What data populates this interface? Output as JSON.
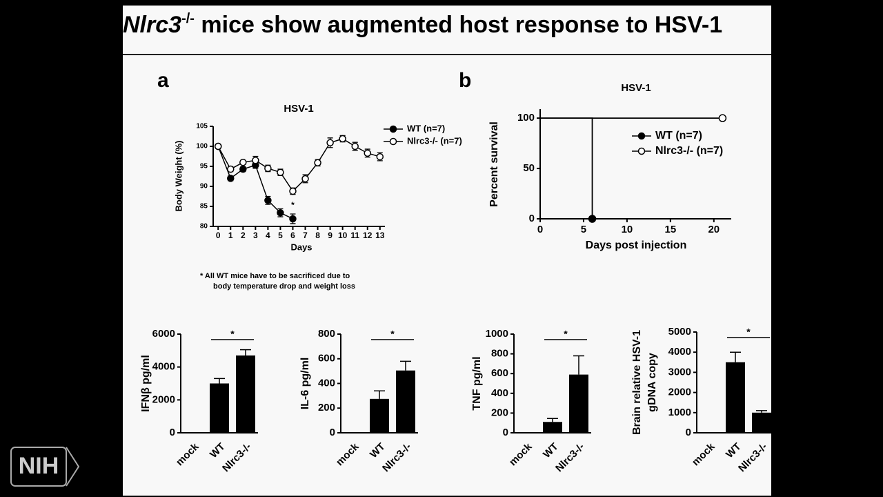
{
  "slide": {
    "title": "Nlrc3",
    "title_sup": "-/-",
    "title_rest": " mice show augmented host response to HSV-1",
    "logo": "NIH"
  },
  "chart_data": [
    {
      "type": "line",
      "panel": "a",
      "title": "HSV-1",
      "y_label": "Body Weight (%)",
      "x_label": "Days",
      "x": [
        0,
        1,
        2,
        3,
        4,
        5,
        6,
        7,
        8,
        9,
        10,
        11,
        12,
        13
      ],
      "xlim": [
        -0.4,
        13.4
      ],
      "xticks": [
        0,
        1,
        2,
        3,
        4,
        5,
        6,
        7,
        8,
        9,
        10,
        11,
        12,
        13
      ],
      "ylim": [
        80,
        105
      ],
      "yticks": [
        80,
        85,
        90,
        95,
        100,
        105
      ],
      "series": [
        {
          "name": "WT (n=7)",
          "color": "#000000",
          "marker": "filled",
          "values": [
            100,
            92,
            94.3,
            95.3,
            86.5,
            83.4,
            81.9,
            null,
            null,
            null,
            null,
            null,
            null,
            null
          ],
          "errors": [
            0.5,
            0.6,
            0.6,
            0.8,
            1,
            1,
            1.2,
            null,
            null,
            null,
            null,
            null,
            null,
            null
          ]
        },
        {
          "name": "Nlrc3-/- (n=7)",
          "color": "#000000",
          "marker": "open",
          "values": [
            100,
            94.3,
            96,
            96.5,
            94.5,
            93.5,
            88.8,
            91.9,
            95.9,
            100.9,
            101.9,
            100,
            98.3,
            97.4
          ],
          "errors": [
            0.5,
            0.6,
            0.5,
            1,
            0.8,
            0.8,
            0.8,
            1,
            0.8,
            1.2,
            0.8,
            1,
            1,
            1
          ]
        }
      ],
      "annotation": "*",
      "footnote": [
        "*   All WT mice have to be sacrificed due to",
        "body temperature drop and weight loss"
      ]
    },
    {
      "type": "step",
      "panel": "b",
      "title": "HSV-1",
      "y_label": "Percent survival",
      "x_label": "Days post injection",
      "xlim": [
        0,
        22
      ],
      "xticks": [
        0,
        5,
        10,
        15,
        20
      ],
      "ylim": [
        0,
        109
      ],
      "yticks": [
        0,
        50,
        100
      ],
      "series": [
        {
          "name": "WT (n=7)",
          "color": "#000000",
          "marker": "filled",
          "x": [
            0,
            6,
            6
          ],
          "values": [
            100,
            100,
            0
          ]
        },
        {
          "name": "Nlrc3-/- (n=7)",
          "color": "#000000",
          "marker": "open",
          "x": [
            0,
            21
          ],
          "values": [
            100,
            100
          ]
        }
      ]
    },
    {
      "type": "bar",
      "y_label": [
        "IFNβ pg/ml"
      ],
      "categories": [
        "mock",
        "WT",
        "Nlrc3-/-"
      ],
      "values": [
        0,
        3000,
        4700
      ],
      "errors": [
        null,
        300,
        350
      ],
      "color": "#000000",
      "ylim": [
        0,
        6000
      ],
      "yticks": [
        0,
        2000,
        4000,
        6000
      ],
      "annotation": "*"
    },
    {
      "type": "bar",
      "y_label": [
        "IL-6 pg/ml"
      ],
      "categories": [
        "mock",
        "WT",
        "Nlrc3-/-"
      ],
      "values": [
        0,
        275,
        505
      ],
      "errors": [
        null,
        65,
        75
      ],
      "color": "#000000",
      "ylim": [
        0,
        800
      ],
      "yticks": [
        0,
        200,
        400,
        600,
        800
      ],
      "annotation": "*"
    },
    {
      "type": "bar",
      "y_label": [
        "TNF pg/ml"
      ],
      "categories": [
        "mock",
        "WT",
        "Nlrc3-/-"
      ],
      "values": [
        0,
        110,
        590
      ],
      "errors": [
        null,
        35,
        190
      ],
      "color": "#000000",
      "ylim": [
        0,
        1000
      ],
      "yticks": [
        0,
        200,
        400,
        600,
        800,
        1000
      ],
      "annotation": "*"
    },
    {
      "type": "bar",
      "y_label": [
        "Brain relative HSV-1",
        "gDNA copy"
      ],
      "categories": [
        "mock",
        "WT",
        "Nlrc3-/-"
      ],
      "values": [
        0,
        3500,
        1000
      ],
      "errors": [
        null,
        500,
        100
      ],
      "color": "#000000",
      "ylim": [
        0,
        5000
      ],
      "yticks": [
        0,
        1000,
        2000,
        3000,
        4000,
        5000
      ],
      "annotation": "*"
    }
  ]
}
